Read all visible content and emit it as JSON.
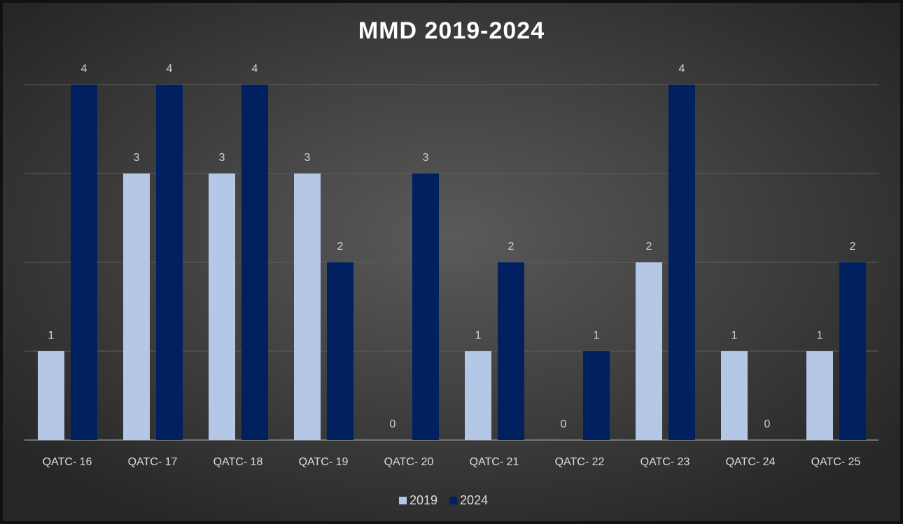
{
  "chart_data": {
    "type": "bar",
    "title": "MMD 2019-2024",
    "categories": [
      "QATC- 16",
      "QATC- 17",
      "QATC- 18",
      "QATC- 19",
      "QATC- 20",
      "QATC- 21",
      "QATC- 22",
      "QATC- 23",
      "QATC- 24",
      "QATC- 25"
    ],
    "series": [
      {
        "name": "2019",
        "color": "#b4c7e7",
        "values": [
          1,
          3,
          3,
          3,
          0,
          1,
          0,
          2,
          1,
          1
        ]
      },
      {
        "name": "2024",
        "color": "#002060",
        "values": [
          4,
          4,
          4,
          2,
          3,
          2,
          1,
          4,
          0,
          2
        ]
      }
    ],
    "ylim": [
      0,
      4
    ],
    "yticks": [
      0,
      1,
      2,
      3,
      4
    ],
    "grid": true,
    "legend": "bottom"
  }
}
